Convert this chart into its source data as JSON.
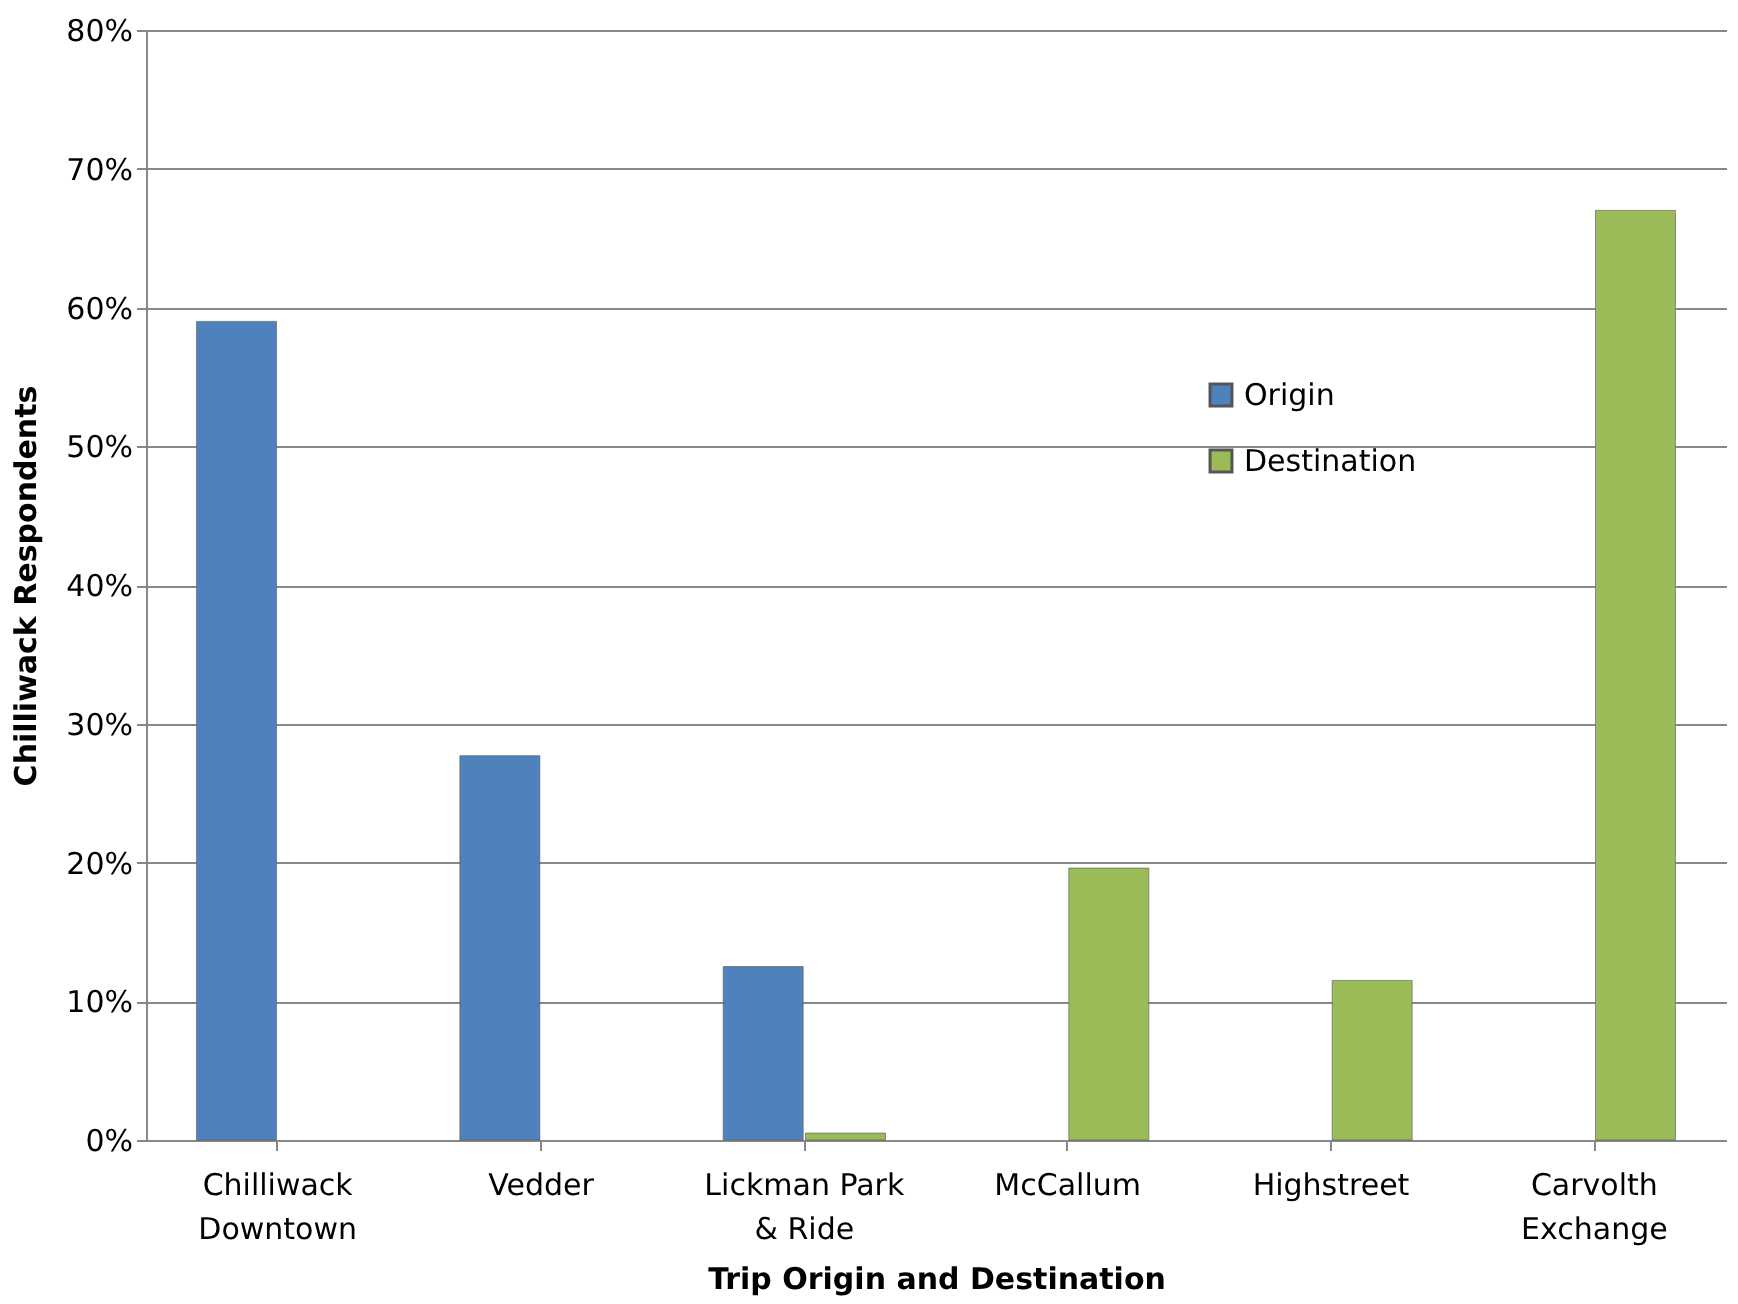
{
  "chart_data": {
    "type": "bar",
    "xlabel": "Trip Origin and Destination",
    "ylabel": "Chilliwack Respondents",
    "categories": [
      "Chilliwack\nDowntown",
      "Vedder",
      "Lickman Park\n& Ride",
      "McCallum",
      "Highstreet",
      "Carvolth\nExchange"
    ],
    "series": [
      {
        "name": "Origin",
        "color": "#4f81bd",
        "values": [
          59,
          27.7,
          12.5,
          null,
          null,
          null
        ]
      },
      {
        "name": "Destination",
        "color": "#9bbb59",
        "values": [
          null,
          null,
          0.5,
          19.6,
          11.5,
          67
        ]
      }
    ],
    "ylim": [
      0,
      80
    ],
    "yticks": [
      {
        "value": 0,
        "label": "0%"
      },
      {
        "value": 10,
        "label": "10%"
      },
      {
        "value": 20,
        "label": "20%"
      },
      {
        "value": 30,
        "label": "30%"
      },
      {
        "value": 40,
        "label": "40%"
      },
      {
        "value": 50,
        "label": "50%"
      },
      {
        "value": 60,
        "label": "60%"
      },
      {
        "value": 70,
        "label": "70%"
      },
      {
        "value": 80,
        "label": "80%"
      }
    ],
    "grid": "y",
    "legend": "right"
  }
}
